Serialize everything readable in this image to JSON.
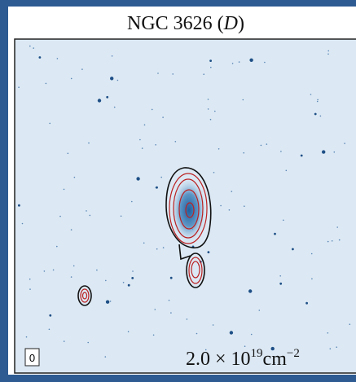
{
  "panel": {
    "title": "NGC 3626",
    "title_tag": "D",
    "panel_label": "0",
    "contour_label": {
      "mantissa": "2.0 × 10",
      "exponent": "19",
      "unit": "cm",
      "unit_exponent": "−2"
    }
  }
}
